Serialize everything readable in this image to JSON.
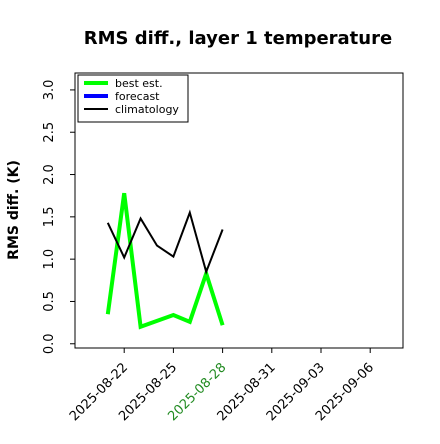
{
  "chart_data": {
    "type": "line",
    "title": "RMS diff., layer 1 temperature",
    "ylabel": "RMS diff. (K)",
    "xlabel": "",
    "x_ticks": [
      "2025-08-22",
      "2025-08-25",
      "2025-08-28",
      "2025-08-31",
      "2025-09-03",
      "2025-09-06"
    ],
    "highlighted_tick": "2025-08-28",
    "highlight_color": "#228b22",
    "xlim": [
      "2025-08-19",
      "2025-09-08"
    ],
    "y_ticks": [
      "0.0",
      "0.5",
      "1.0",
      "1.5",
      "2.0",
      "2.5",
      "3.0"
    ],
    "ylim": [
      -0.05,
      3.2
    ],
    "grid": false,
    "legend_position": "top-left",
    "series": [
      {
        "name": "best est.",
        "color": "#00ff00",
        "x": [
          "2025-08-21",
          "2025-08-22",
          "2025-08-23",
          "2025-08-25",
          "2025-08-26",
          "2025-08-27",
          "2025-08-28"
        ],
        "values": [
          0.35,
          1.78,
          0.2,
          0.34,
          0.26,
          0.83,
          0.22
        ]
      },
      {
        "name": "forecast",
        "color": "#0000ff",
        "x": [],
        "values": []
      },
      {
        "name": "climatology",
        "color": "#000000",
        "x": [
          "2025-08-21",
          "2025-08-22",
          "2025-08-23",
          "2025-08-24",
          "2025-08-25",
          "2025-08-26",
          "2025-08-27",
          "2025-08-28"
        ],
        "values": [
          1.43,
          1.02,
          1.48,
          1.16,
          1.03,
          1.55,
          0.85,
          1.35
        ]
      }
    ]
  }
}
